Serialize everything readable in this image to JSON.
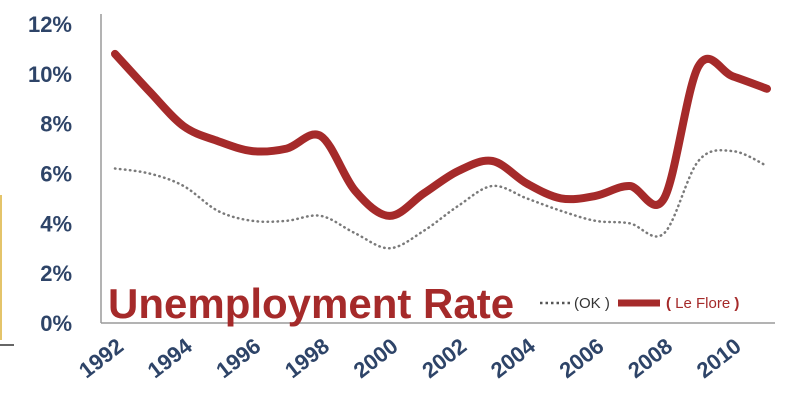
{
  "chart_data": {
    "type": "line",
    "title": "Unemployment Rate",
    "xlabel": "",
    "ylabel": "",
    "xlim": [
      1992,
      2011
    ],
    "ylim": [
      0,
      12
    ],
    "y_tick_labels": [
      "0%",
      "2%",
      "4%",
      "6%",
      "8%",
      "10%",
      "12%"
    ],
    "x_tick_labels": [
      "1992",
      "1994",
      "1996",
      "1998",
      "2000",
      "2002",
      "2004",
      "2006",
      "2008",
      "2010"
    ],
    "grid": false,
    "legend_position": "bottom-right",
    "legend": {
      "ok_label": "(OK )",
      "lf_open": "(",
      "lf_label": " Le Flore ",
      "lf_close": ")"
    },
    "series": [
      {
        "key": "ok",
        "legend_label": "(OK )",
        "color": "#7a7a7a",
        "style": "dotted",
        "x": [
          1992,
          1993,
          1994,
          1995,
          1996,
          1997,
          1998,
          1999,
          2000,
          2001,
          2002,
          2003,
          2004,
          2005,
          2006,
          2007,
          2008,
          2009,
          2010,
          2011
        ],
        "values": [
          6.2,
          6.0,
          5.5,
          4.5,
          4.1,
          4.1,
          4.3,
          3.6,
          3.0,
          3.7,
          4.7,
          5.5,
          5.0,
          4.5,
          4.1,
          4.0,
          3.6,
          6.5,
          6.9,
          6.3
        ]
      },
      {
        "key": "leflore",
        "legend_label": "( Le Flore )",
        "color": "#a52a2a",
        "style": "solid",
        "x": [
          1992,
          1993,
          1994,
          1995,
          1996,
          1997,
          1998,
          1999,
          2000,
          2001,
          2002,
          2003,
          2004,
          2005,
          2006,
          2007,
          2008,
          2009,
          2010,
          2011
        ],
        "values": [
          10.8,
          9.3,
          7.9,
          7.3,
          6.9,
          7.0,
          7.5,
          5.3,
          4.3,
          5.2,
          6.1,
          6.5,
          5.6,
          5.0,
          5.1,
          5.5,
          5.0,
          10.3,
          9.9,
          9.4
        ]
      }
    ]
  }
}
